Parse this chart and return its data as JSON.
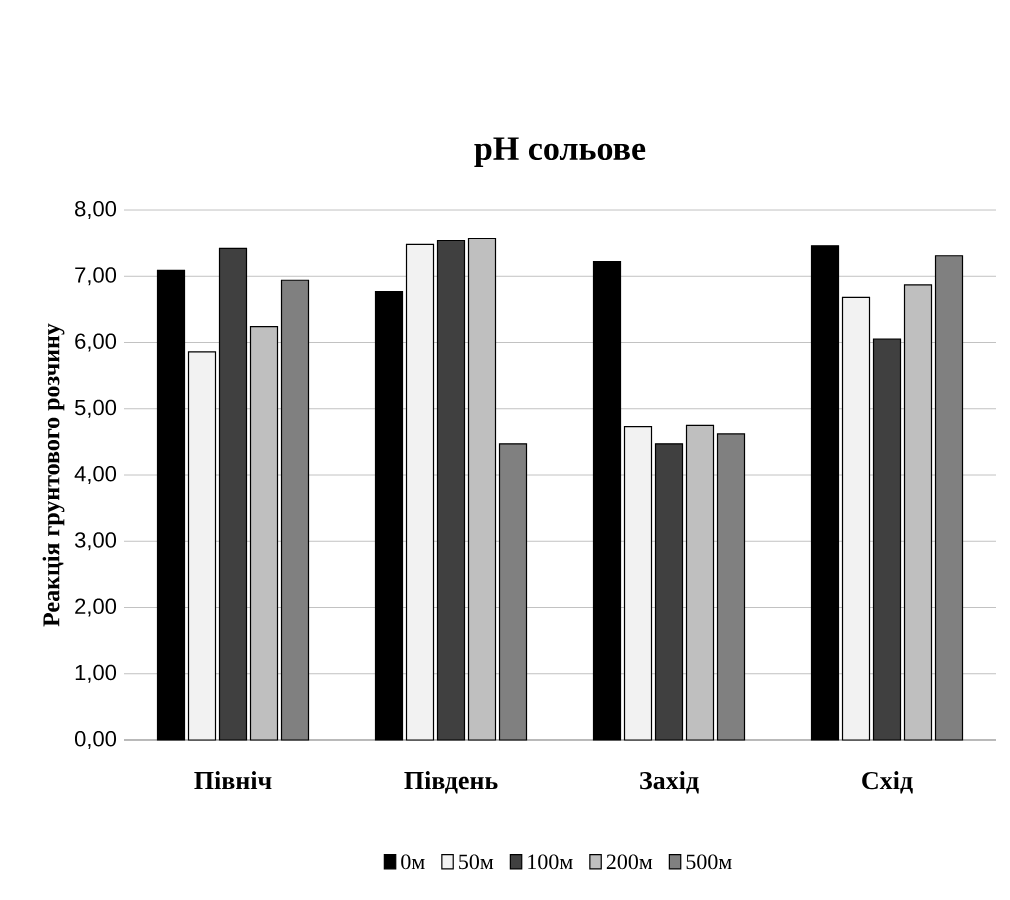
{
  "chart_data": {
    "type": "bar",
    "title": "pH сольове",
    "ylabel": "Реакція грунтового розчину",
    "categories": [
      "Північ",
      "Південь",
      "Захід",
      "Схід"
    ],
    "series": [
      {
        "name": "0м",
        "color": "#000000",
        "values": [
          7.09,
          6.77,
          7.22,
          7.46
        ]
      },
      {
        "name": "50м",
        "color": "#f2f2f2",
        "values": [
          5.86,
          7.48,
          4.73,
          6.68
        ]
      },
      {
        "name": "100м",
        "color": "#404040",
        "values": [
          7.42,
          7.54,
          4.47,
          6.05
        ]
      },
      {
        "name": "200м",
        "color": "#bfbfbf",
        "values": [
          6.24,
          7.57,
          4.75,
          6.87
        ]
      },
      {
        "name": "500м",
        "color": "#808080",
        "values": [
          6.94,
          4.47,
          4.62,
          7.31
        ]
      }
    ],
    "ylim": [
      0,
      8
    ],
    "yticks": [
      {
        "value": 0,
        "label": "0,00"
      },
      {
        "value": 1,
        "label": "1,00"
      },
      {
        "value": 2,
        "label": "2,00"
      },
      {
        "value": 3,
        "label": "3,00"
      },
      {
        "value": 4,
        "label": "4,00"
      },
      {
        "value": 5,
        "label": "5,00"
      },
      {
        "value": 6,
        "label": "6,00"
      },
      {
        "value": 7,
        "label": "7,00"
      },
      {
        "value": 8,
        "label": "8,00"
      }
    ],
    "grid": "y",
    "legend": "bottom"
  }
}
